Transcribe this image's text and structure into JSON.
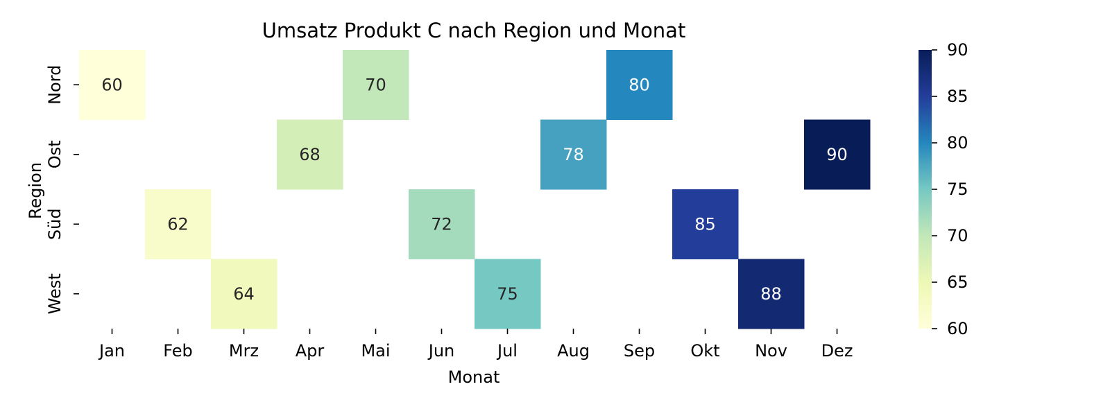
{
  "chart_data": {
    "type": "heatmap",
    "title": "Umsatz Produkt C nach Region und Monat",
    "xlabel": "Monat",
    "ylabel": "Region",
    "x_categories": [
      "Jan",
      "Feb",
      "Mrz",
      "Apr",
      "Mai",
      "Jun",
      "Jul",
      "Aug",
      "Sep",
      "Okt",
      "Nov",
      "Dez"
    ],
    "y_categories": [
      "Nord",
      "Ost",
      "Süd",
      "West"
    ],
    "cells": [
      {
        "x": "Jan",
        "y": "Nord",
        "value": 60
      },
      {
        "x": "Feb",
        "y": "Süd",
        "value": 62
      },
      {
        "x": "Mrz",
        "y": "West",
        "value": 64
      },
      {
        "x": "Apr",
        "y": "Ost",
        "value": 68
      },
      {
        "x": "Mai",
        "y": "Nord",
        "value": 70
      },
      {
        "x": "Jun",
        "y": "Süd",
        "value": 72
      },
      {
        "x": "Jul",
        "y": "West",
        "value": 75
      },
      {
        "x": "Aug",
        "y": "Ost",
        "value": 78
      },
      {
        "x": "Sep",
        "y": "Nord",
        "value": 80
      },
      {
        "x": "Okt",
        "y": "Süd",
        "value": 85
      },
      {
        "x": "Nov",
        "y": "West",
        "value": 88
      },
      {
        "x": "Dez",
        "y": "Ost",
        "value": 90
      }
    ],
    "colorbar": {
      "min": 60,
      "max": 90,
      "ticks": [
        60,
        65,
        70,
        75,
        80,
        85,
        90
      ],
      "colormap": "YlGnBu"
    },
    "grid": false
  }
}
